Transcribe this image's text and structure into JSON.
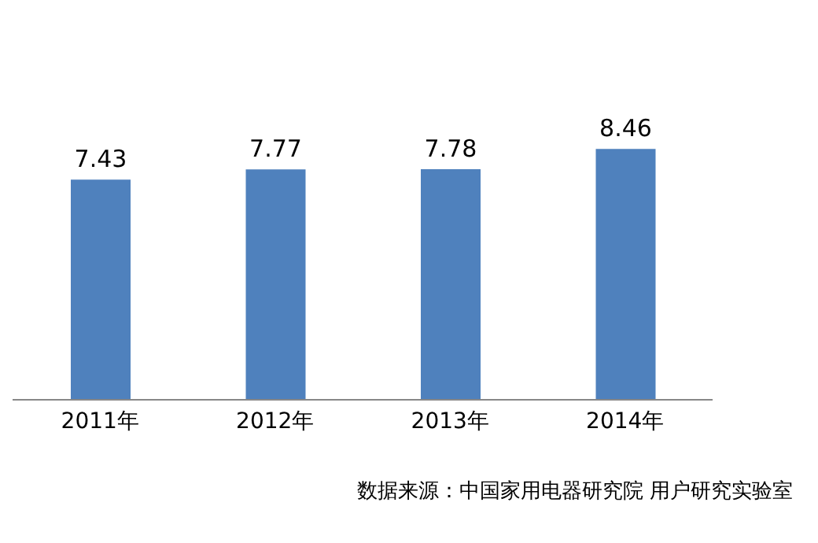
{
  "chart_data": {
    "type": "bar",
    "categories": [
      "2011年",
      "2012年",
      "2013年",
      "2014年"
    ],
    "values": [
      7.43,
      7.77,
      7.78,
      8.46
    ],
    "color": "#4f81bd",
    "data_labels": true,
    "tick_labels": "x",
    "annotations": [
      "数据来源：中国家用电器研究院 用户研究实验室"
    ]
  }
}
